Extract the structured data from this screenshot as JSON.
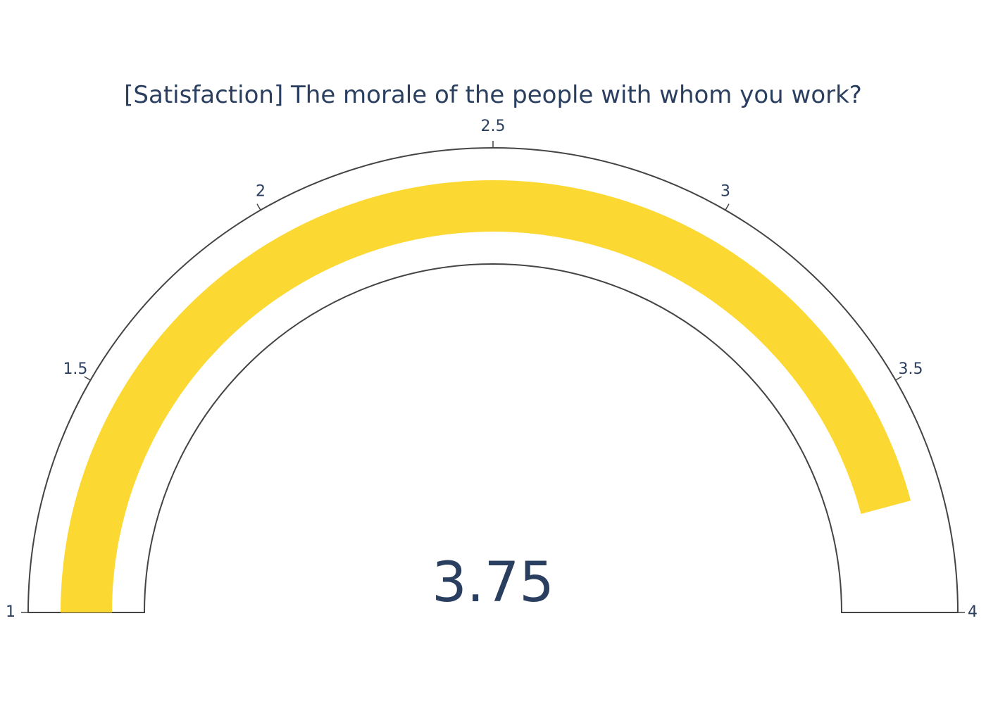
{
  "chart_data": {
    "type": "gauge",
    "title": "[Satisfaction] The morale of the people with whom you work?",
    "value": 3.75,
    "value_label": "3.75",
    "range": [
      1,
      4
    ],
    "ticks": [
      {
        "value": 1,
        "label": "1"
      },
      {
        "value": 1.5,
        "label": "1.5"
      },
      {
        "value": 2,
        "label": "2"
      },
      {
        "value": 2.5,
        "label": "2.5"
      },
      {
        "value": 3,
        "label": "3"
      },
      {
        "value": 3.5,
        "label": "3.5"
      },
      {
        "value": 4,
        "label": "4"
      }
    ],
    "bar_color": "#fcd832",
    "outline_color": "#444444",
    "text_color": "#2a3f5f"
  }
}
